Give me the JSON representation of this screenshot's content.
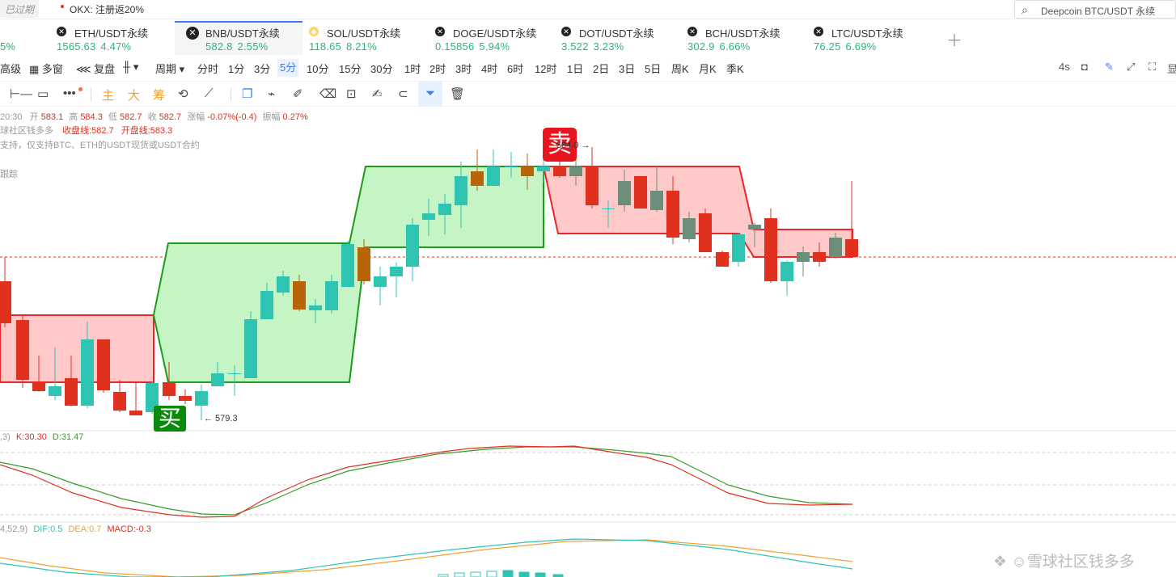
{
  "topbar": {
    "expired_label": "已过期",
    "promo_text": "OKX: 注册返20%",
    "search_placeholder": "Deepcoin BTC/USDT 永续",
    "search_icon": "search-icon"
  },
  "tickers": [
    {
      "name": "",
      "price": "",
      "change": "5%"
    },
    {
      "name": "ETH/USDT永续",
      "price": "1565.63",
      "change": "4.47%"
    },
    {
      "name": "BNB/USDT永续",
      "price": "582.8",
      "change": "2.55%"
    },
    {
      "name": "SOL/USDT永续",
      "price": "118.65",
      "change": "8.21%"
    },
    {
      "name": "DOGE/USDT永续",
      "price": "0.15856",
      "change": "5.94%"
    },
    {
      "name": "DOT/USDT永续",
      "price": "3.522",
      "change": "3.23%"
    },
    {
      "name": "BCH/USDT永续",
      "price": "302.9",
      "change": "6.66%"
    },
    {
      "name": "LTC/USDT永续",
      "price": "76.25",
      "change": "6.69%"
    }
  ],
  "periodbar": {
    "items": [
      "高级",
      "多窗",
      "复盘",
      "周期",
      "分时",
      "1分",
      "3分",
      "5分",
      "10分",
      "15分",
      "30分",
      "1时",
      "2时",
      "3时",
      "4时",
      "6时",
      "12时",
      "1日",
      "2日",
      "3日",
      "5日",
      "周K",
      "月K",
      "季K"
    ],
    "selected": "5分",
    "right_label": "4s",
    "far_right": "显"
  },
  "toolbar": {
    "labels": [
      "主",
      "大",
      "筹"
    ]
  },
  "info": {
    "time": "20:30",
    "open_label": "开",
    "open": "583.1",
    "high_label": "高",
    "high": "584.3",
    "low_label": "低",
    "low": "582.7",
    "close_label": "收",
    "close": "582.7",
    "chg_label": "涨幅",
    "chg": "-0.07%(-0.4)",
    "amp_label": "振幅",
    "amp": "0.27%",
    "line2_a": "球社区钱多多",
    "line2_b": "收盘线:582.7",
    "line2_c": "开盘线:583.3",
    "line3": "支持，仅支持BTC、ETH的USDT现货或USDT合约",
    "line4": "跟踪"
  },
  "markers": {
    "buy_label": "买",
    "sell_label": "卖",
    "low_note": "← 579.3",
    "high_note": "584.0 →"
  },
  "kdj": {
    "params": ",3)",
    "k": "K:30.30",
    "d": "D:31.47"
  },
  "macd": {
    "params": "4,52,9)",
    "dif": "DIF:0.5",
    "dea": "DEA:0.7",
    "macd": "MACD:-0.3"
  },
  "watermark": "雪球社区钱多多",
  "colors": {
    "up": "#26b877",
    "down": "#e0301e",
    "accent": "#3d7df5",
    "teal": "#3aa88a"
  }
}
